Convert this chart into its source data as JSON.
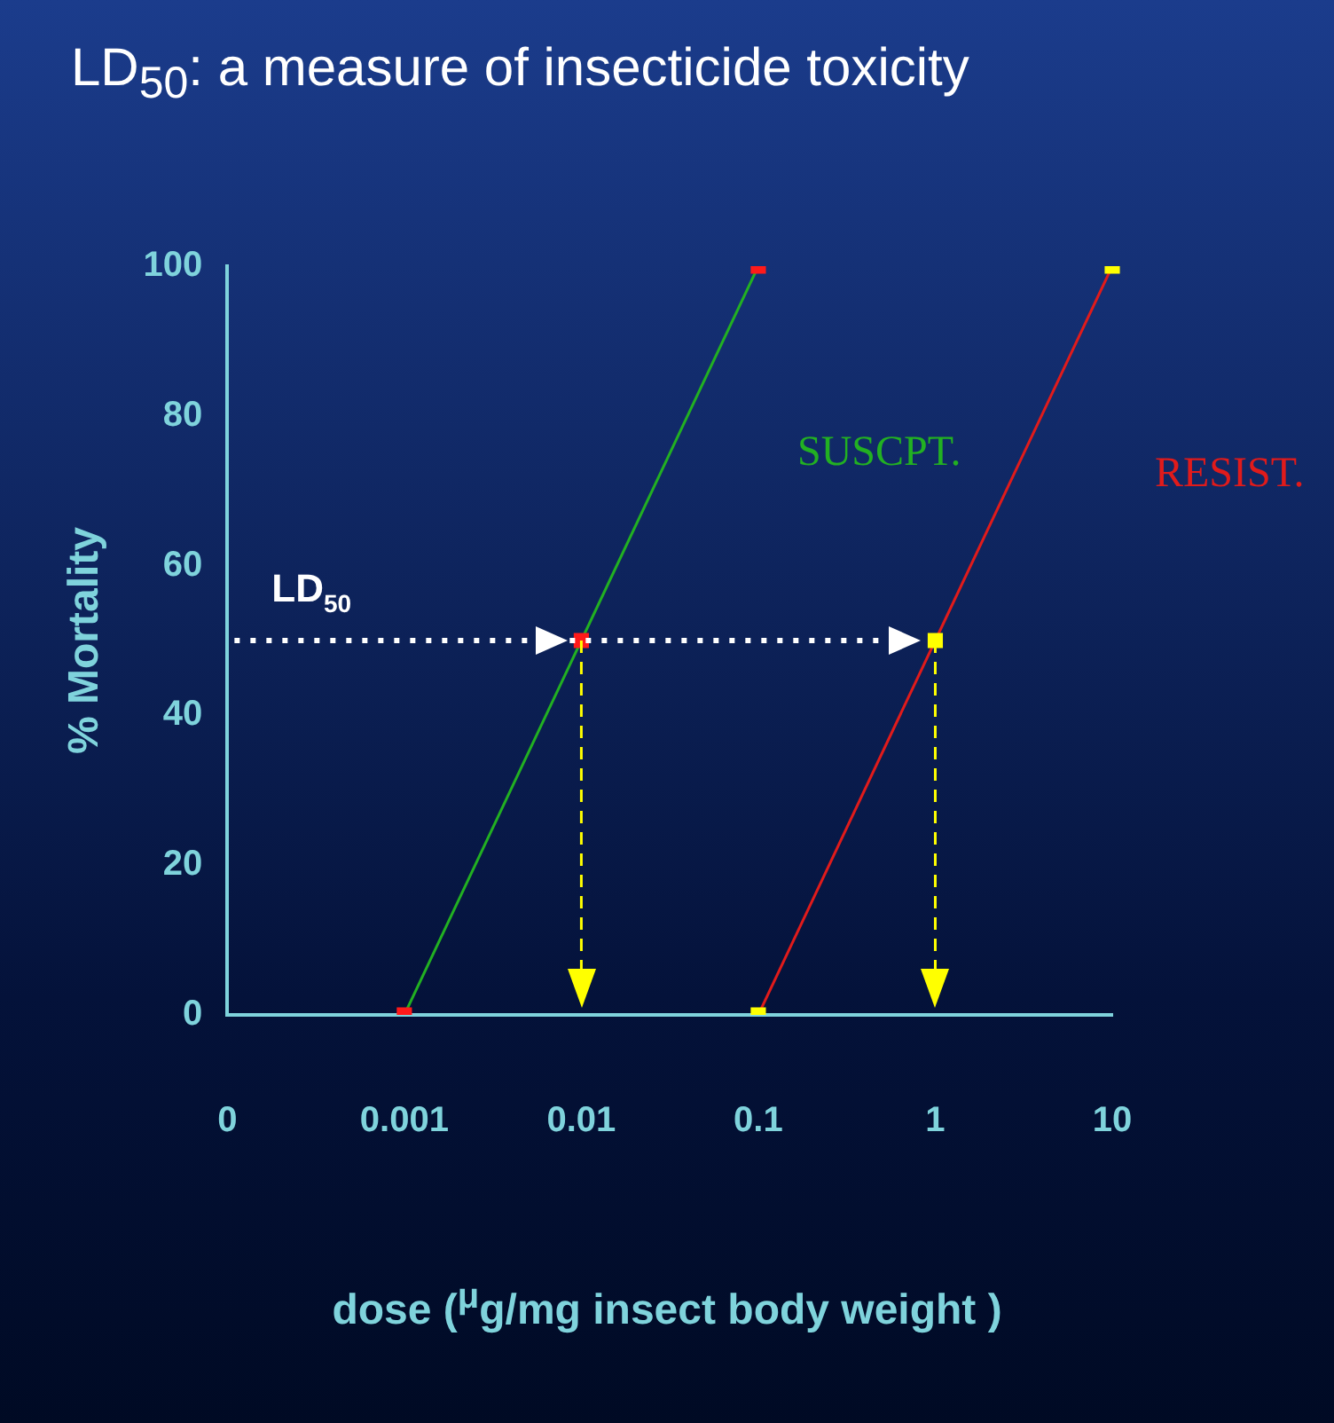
{
  "chart_data": {
    "type": "line",
    "title": "LD$_{50}$: a measure of insecticide toxicity",
    "xlabel": "dose ($^{μ}$g/mg insect body weight )",
    "ylabel": "% Mortality",
    "categories": [
      "0",
      "0.001",
      "0.01",
      "0.1",
      "1",
      "10"
    ],
    "series": [
      {
        "name": "SUSCPT.",
        "color": "#22b022",
        "colors": [
          null,
          "#ff1a1a",
          "#ff1a1a",
          "#ff1a1a",
          null,
          null
        ],
        "values": [
          null,
          0,
          50,
          100,
          null,
          null
        ]
      },
      {
        "name": "RESIST.",
        "color": "#e01b1b",
        "colors": [
          null,
          null,
          null,
          "#ffff00",
          "#ffff00",
          "#ffff00"
        ],
        "values": [
          null,
          null,
          null,
          0,
          50,
          100
        ]
      }
    ],
    "ylim": [
      0,
      100
    ],
    "yticks": [
      0,
      20,
      40,
      60,
      80,
      100
    ],
    "grid": false,
    "legend": false,
    "marker": "square",
    "line_style": "solid",
    "ref_lines": [
      {
        "axis": "y",
        "value": 50,
        "label": "LD$_{50}$",
        "color": "#ffffff",
        "line_style": "dotted"
      },
      {
        "axis": "x",
        "value": "0.01",
        "color": "#ffff00",
        "line_style": "dashed"
      },
      {
        "axis": "x",
        "value": "1",
        "color": "#ffff00",
        "line_style": "dashed"
      }
    ]
  }
}
